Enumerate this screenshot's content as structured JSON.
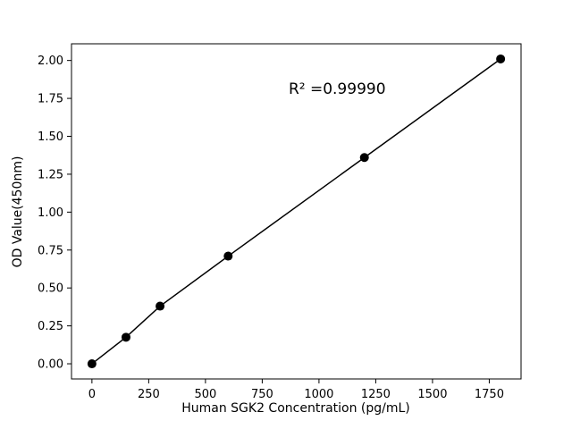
{
  "figure": {
    "background": "#ffffff"
  },
  "chart_data": {
    "type": "scatter",
    "title": "",
    "xlabel": "Human SGK2 Concentration (pg/mL)",
    "ylabel": "OD Value(450nm)",
    "x": [
      0,
      150,
      300,
      600,
      1200,
      1800
    ],
    "y": [
      0.0,
      0.175,
      0.38,
      0.71,
      1.36,
      2.01
    ],
    "line_through_points": true,
    "xlim": [
      -90,
      1890
    ],
    "ylim": [
      -0.1,
      2.11
    ],
    "x_ticks": [
      0,
      250,
      500,
      750,
      1000,
      1250,
      1500,
      1750
    ],
    "y_ticks": [
      "0.00",
      "0.25",
      "0.50",
      "0.75",
      "1.00",
      "1.25",
      "1.50",
      "1.75",
      "2.00"
    ],
    "grid": false,
    "legend": null,
    "annotation": {
      "text": "R² =0.99990",
      "x": 1080,
      "y": 1.78
    },
    "marker_color": "#000000",
    "line_color": "#000000",
    "axis_color": "#000000"
  }
}
